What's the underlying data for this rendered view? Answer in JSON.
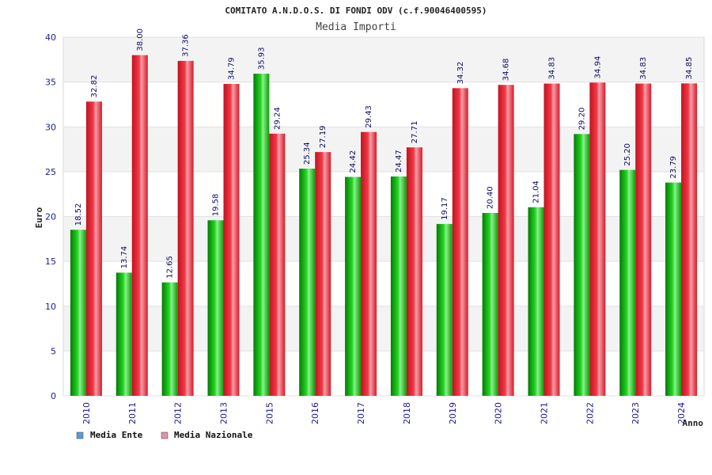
{
  "chart_data": {
    "type": "bar",
    "title": "COMITATO A.N.D.O.S. DI FONDI ODV (c.f.90046400595)",
    "subtitle": "Media Importi",
    "xlabel": "Anno",
    "ylabel": "Euro",
    "ylim": [
      0,
      40
    ],
    "yticks": [
      0,
      5,
      10,
      15,
      20,
      25,
      30,
      35,
      40
    ],
    "grid": true,
    "legend_position": "bottom-left",
    "categories": [
      "2010",
      "2011",
      "2012",
      "2013",
      "2015",
      "2016",
      "2017",
      "2018",
      "2019",
      "2020",
      "2021",
      "2022",
      "2023",
      "2024"
    ],
    "series": [
      {
        "name": "Media Ente",
        "color": "#1fc21f",
        "legend_color": "#5b9bd5",
        "values": [
          18.52,
          13.74,
          12.65,
          19.58,
          35.93,
          25.34,
          24.42,
          24.47,
          19.17,
          20.4,
          21.04,
          29.2,
          25.2,
          23.79
        ],
        "labels": [
          "18.52",
          "13.74",
          "12.65",
          "19.58",
          "35.93",
          "25.34",
          "24.42",
          "24.47",
          "19.17",
          "20.40",
          "21.04",
          "29.20",
          "25.20",
          "23.79"
        ]
      },
      {
        "name": "Media Nazionale",
        "color": "#ee2a3a",
        "legend_color": "#e58fb0",
        "values": [
          32.82,
          38.0,
          37.36,
          34.79,
          29.24,
          27.19,
          29.43,
          27.71,
          34.32,
          34.68,
          34.83,
          34.94,
          34.83,
          34.85
        ],
        "labels": [
          "32.82",
          "38.00",
          "37.36",
          "34.79",
          "29.24",
          "27.19",
          "29.43",
          "27.71",
          "34.32",
          "34.68",
          "34.83",
          "34.94",
          "34.83",
          "34.85"
        ]
      }
    ]
  }
}
